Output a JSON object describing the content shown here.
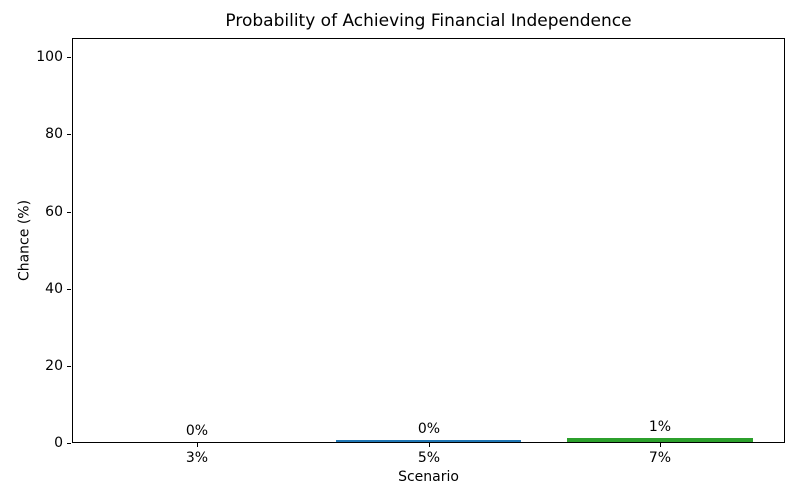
{
  "figure": {
    "background_color": "#ffffff",
    "spine_color": "#000000",
    "text_color": "#000000"
  },
  "chart_data": {
    "type": "bar",
    "title": "Probability of Achieving Financial Independence",
    "xlabel": "Scenario",
    "ylabel": "Chance (%)",
    "categories": [
      "3%",
      "5%",
      "7%"
    ],
    "values": [
      0,
      0.5,
      1
    ],
    "bar_labels": [
      "0%",
      "0%",
      "1%"
    ],
    "bar_colors": [
      "#1f77b4",
      "#1f77b4",
      "#2ca02c"
    ],
    "yticks": [
      0,
      20,
      40,
      60,
      80,
      100
    ],
    "ylim": [
      0,
      105
    ],
    "grid": false,
    "legend": null
  }
}
